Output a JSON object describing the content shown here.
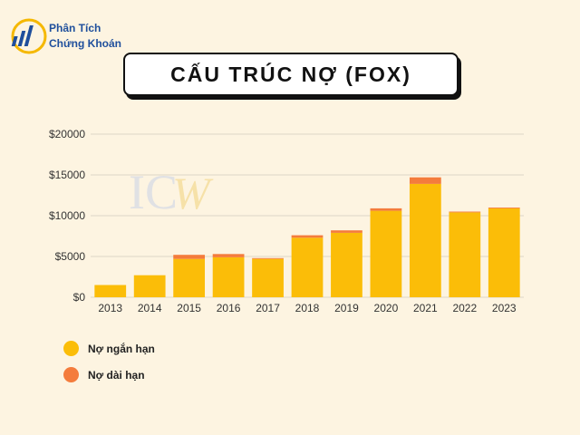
{
  "brand": {
    "line1": "Phân Tích",
    "line2": "Chứng Khoán"
  },
  "chart_data": {
    "type": "bar",
    "title": "CẤU TRÚC NỢ (FOX)",
    "categories": [
      "2013",
      "2014",
      "2015",
      "2016",
      "2017",
      "2018",
      "2019",
      "2020",
      "2021",
      "2022",
      "2023"
    ],
    "series": [
      {
        "name": "Nợ ngắn hạn",
        "color": "#fbbd08",
        "values": [
          1500,
          2700,
          4700,
          4900,
          4700,
          7300,
          7900,
          10600,
          13900,
          10400,
          10900
        ]
      },
      {
        "name": "Nợ dài hạn",
        "color": "#f47c3c",
        "values": [
          0,
          0,
          500,
          400,
          100,
          300,
          300,
          300,
          800,
          100,
          100
        ]
      }
    ],
    "stacked": true,
    "y_ticks": [
      "$0",
      "$5000",
      "$10000",
      "$15000",
      "$20000"
    ],
    "ylim": [
      0,
      20000
    ],
    "grid": true,
    "legend_position": "bottom-left"
  }
}
